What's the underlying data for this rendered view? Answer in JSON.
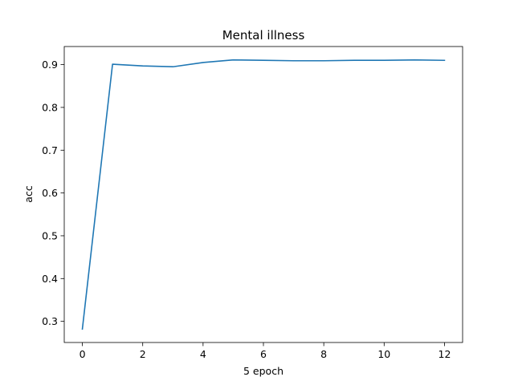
{
  "chart_data": {
    "type": "line",
    "title": "Mental illness",
    "xlabel": "5 epoch",
    "ylabel": "acc",
    "xlim": [
      -0.6,
      12.6
    ],
    "ylim": [
      0.2506,
      0.9423
    ],
    "xticks": [
      0,
      2,
      4,
      6,
      8,
      10,
      12
    ],
    "yticks": [
      0.3,
      0.4,
      0.5,
      0.6,
      0.7,
      0.8,
      0.9
    ],
    "grid": false,
    "series": [
      {
        "color": "#1f77b4",
        "x": [
          0,
          1,
          2,
          3,
          4,
          5,
          6,
          7,
          8,
          9,
          10,
          11,
          12
        ],
        "y": [
          0.282,
          0.901,
          0.897,
          0.895,
          0.905,
          0.911,
          0.91,
          0.909,
          0.909,
          0.91,
          0.91,
          0.911,
          0.91
        ]
      }
    ]
  }
}
